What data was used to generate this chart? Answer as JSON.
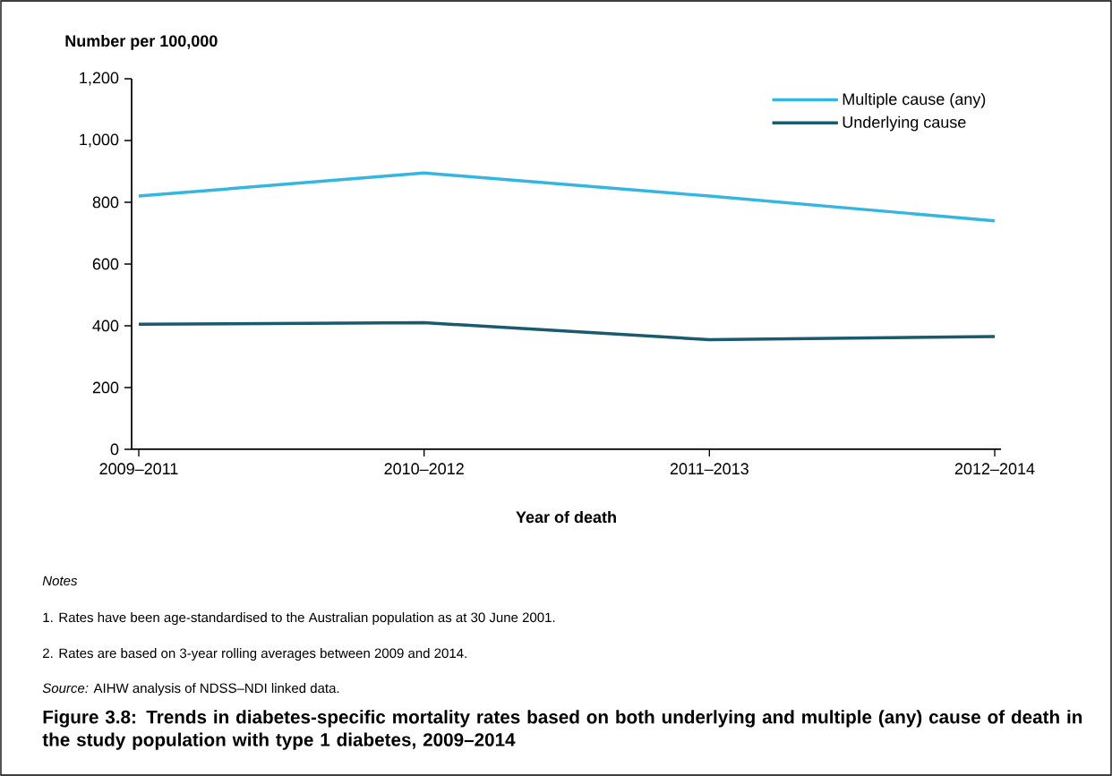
{
  "chart_data": {
    "type": "line",
    "title": "Figure 3.8: Trends in diabetes-specific mortality rates based on both underlying and multiple (any) cause of death in the study population with type 1 diabetes, 2009–2014",
    "ylabel": "Number per 100,000",
    "xlabel": "Year of death",
    "categories": [
      "2009–2011",
      "2010–2012",
      "2011–2013",
      "2012–2014"
    ],
    "series": [
      {
        "name": "Multiple cause (any)",
        "color": "#35b6e0",
        "values": [
          820,
          895,
          820,
          740
        ]
      },
      {
        "name": "Underlying cause",
        "color": "#1a5a6e",
        "values": [
          405,
          410,
          355,
          365
        ]
      }
    ],
    "ylim": [
      0,
      1200
    ],
    "yticks": [
      0,
      200,
      400,
      600,
      800,
      {
        "value": 1000,
        "label": "1,000"
      },
      {
        "value": 1200,
        "label": "1,200"
      }
    ],
    "legend": "top right",
    "annotations": [
      "Notes",
      "1. Rates have been age-standardised to the Australian population as at 30 June 2001.",
      "2. Rates are based on 3-year rolling averages between 2009 and 2014.",
      "*Source:* AIHW analysis of NDSS–NDI linked data."
    ]
  }
}
